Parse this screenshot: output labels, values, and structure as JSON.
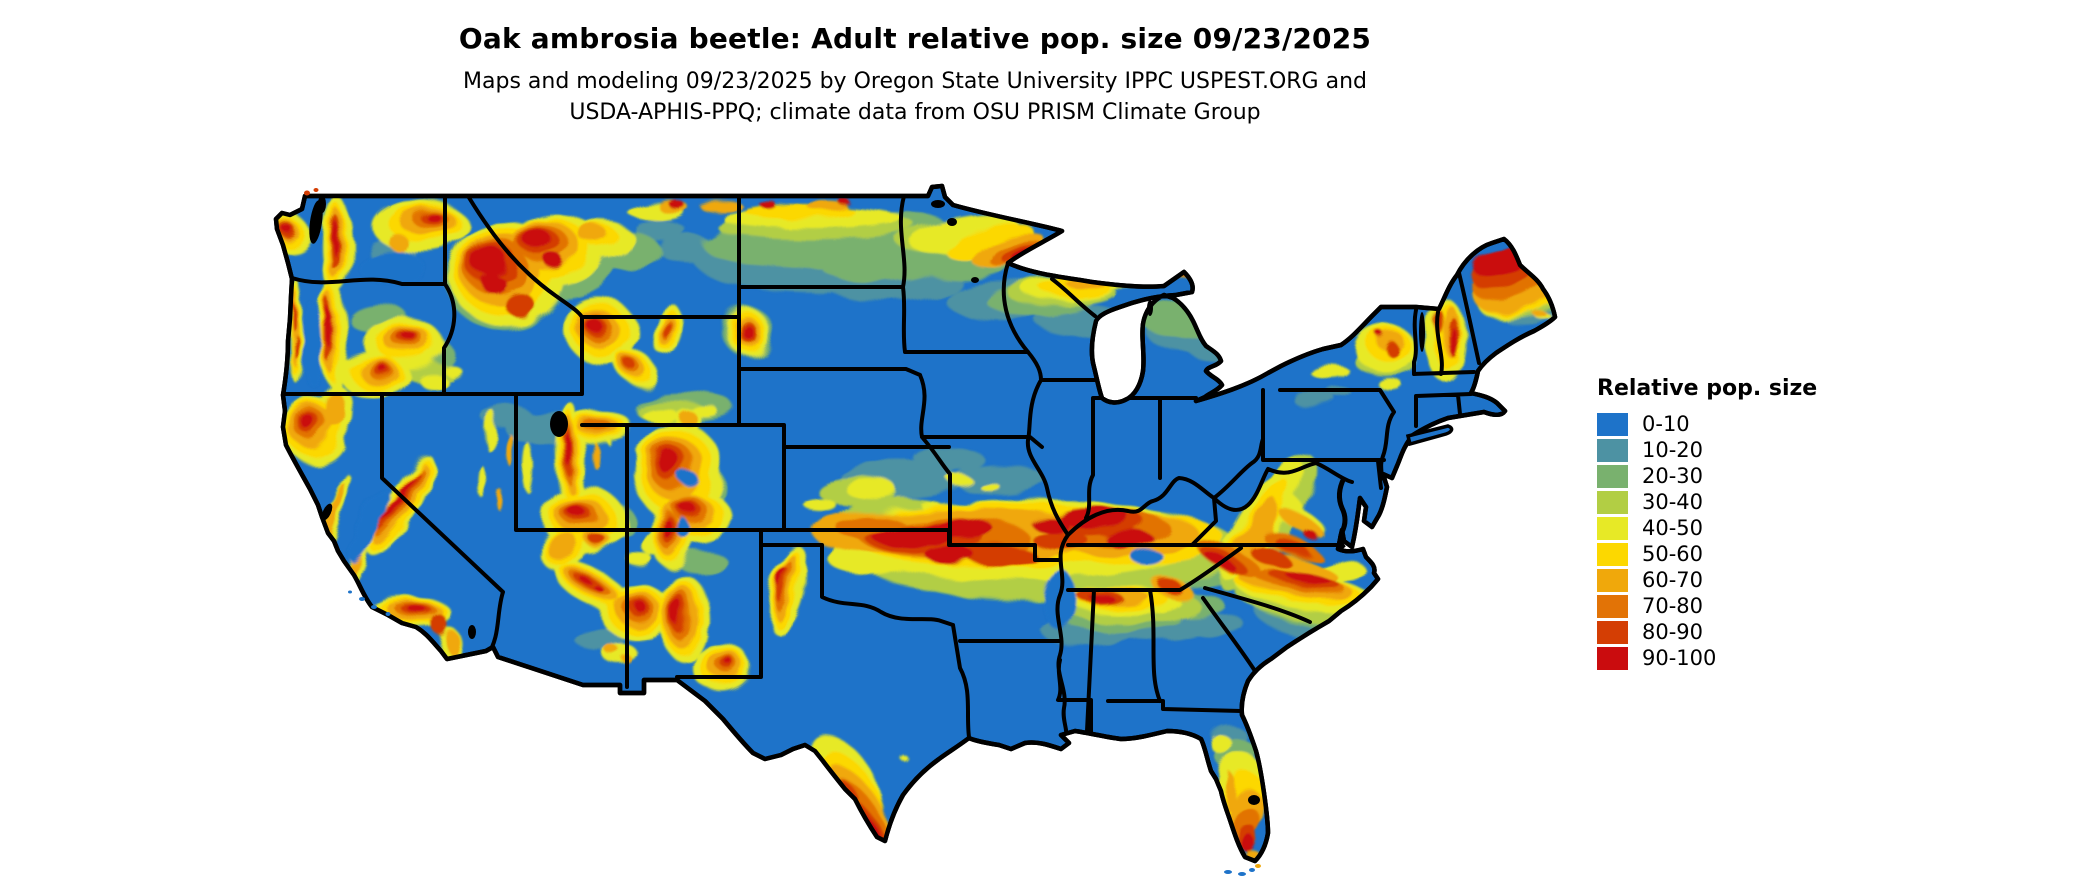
{
  "header": {
    "title": "Oak ambrosia beetle: Adult relative pop. size 09/23/2025",
    "subtitle_line1": "Maps and modeling 09/23/2025 by Oregon State University IPPC USPEST.ORG and",
    "subtitle_line2": "USDA-APHIS-PPQ; climate data from OSU PRISM Climate Group"
  },
  "legend": {
    "title": "Relative pop. size",
    "bins": [
      {
        "label": "0-10",
        "color": "#1e73c9"
      },
      {
        "label": "10-20",
        "color": "#4d92a3"
      },
      {
        "label": "20-30",
        "color": "#79b16e"
      },
      {
        "label": "30-40",
        "color": "#b2ce44"
      },
      {
        "label": "40-50",
        "color": "#e7e926"
      },
      {
        "label": "50-60",
        "color": "#fcd800"
      },
      {
        "label": "60-70",
        "color": "#f0a80b"
      },
      {
        "label": "70-80",
        "color": "#e27306"
      },
      {
        "label": "80-90",
        "color": "#d43e04"
      },
      {
        "label": "90-100",
        "color": "#ca0c0e"
      }
    ]
  },
  "map": {
    "background": "#ffffff",
    "border_color": "#000000"
  }
}
